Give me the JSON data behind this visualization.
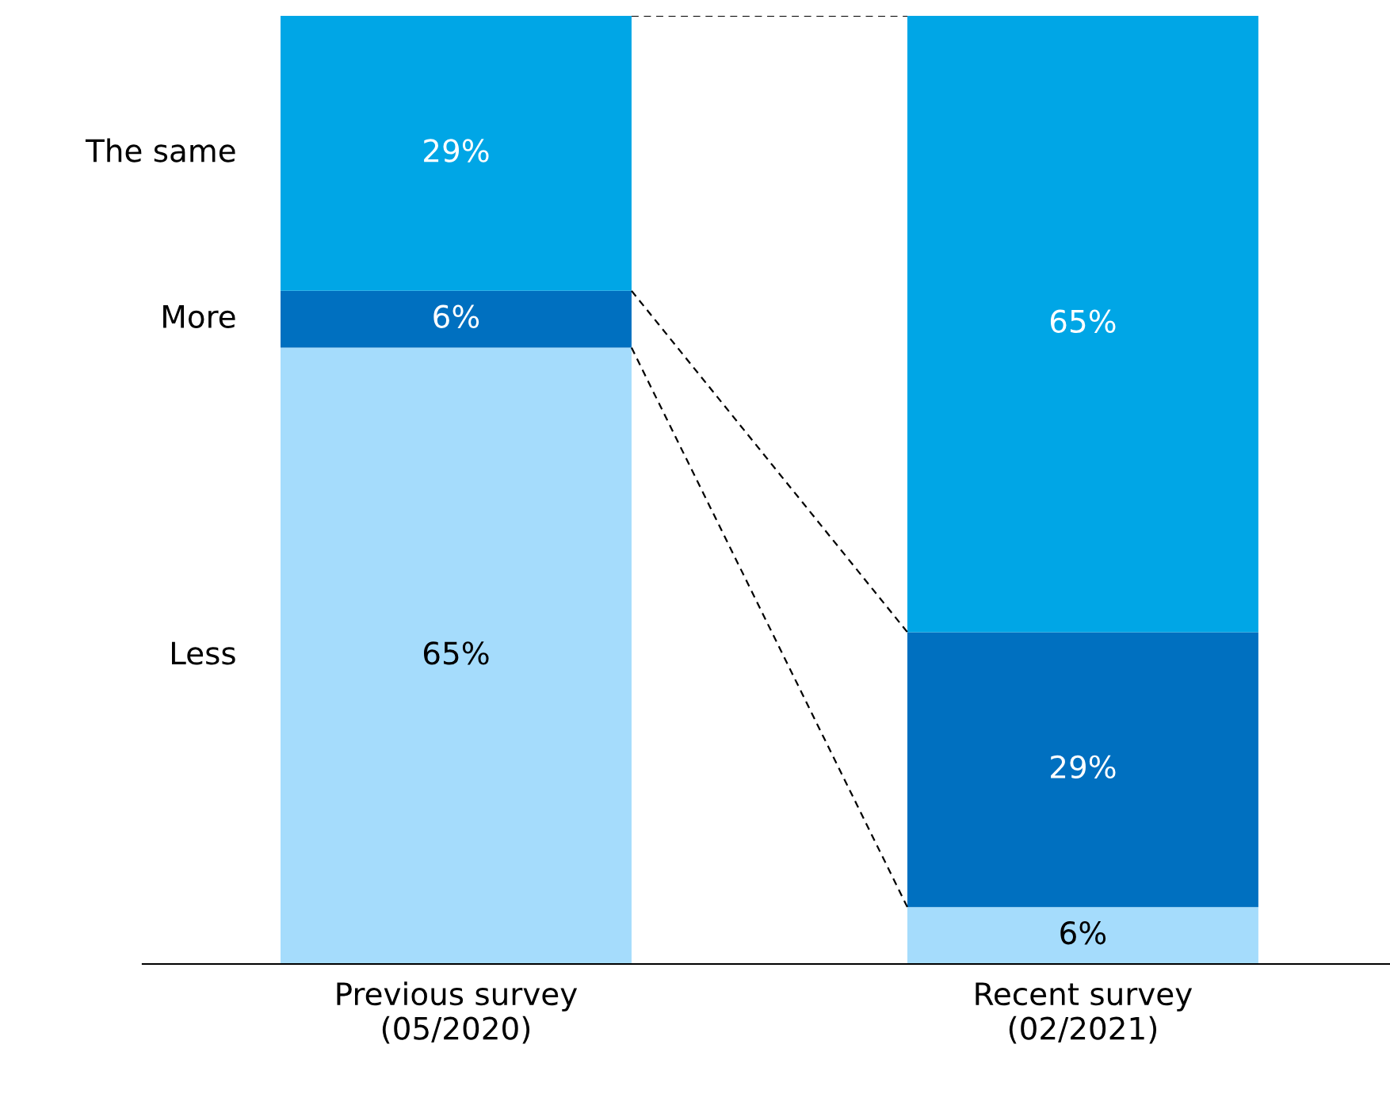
{
  "chart_data": {
    "type": "bar",
    "stacked": true,
    "legend": false,
    "grid": false,
    "categories": [
      "Previous survey\n(05/2020)",
      "Recent survey\n(02/2021)"
    ],
    "series": [
      {
        "name": "Less",
        "color": "#a5dcfc",
        "values": [
          65,
          6
        ],
        "value_labels": [
          "65%",
          "6%"
        ]
      },
      {
        "name": "More",
        "color": "#0070c0",
        "values": [
          6,
          29
        ],
        "value_labels": [
          "6%",
          "29%"
        ]
      },
      {
        "name": "The same",
        "color": "#00a6e6",
        "values": [
          29,
          65
        ],
        "value_labels": [
          "29%",
          "65%"
        ]
      }
    ]
  }
}
